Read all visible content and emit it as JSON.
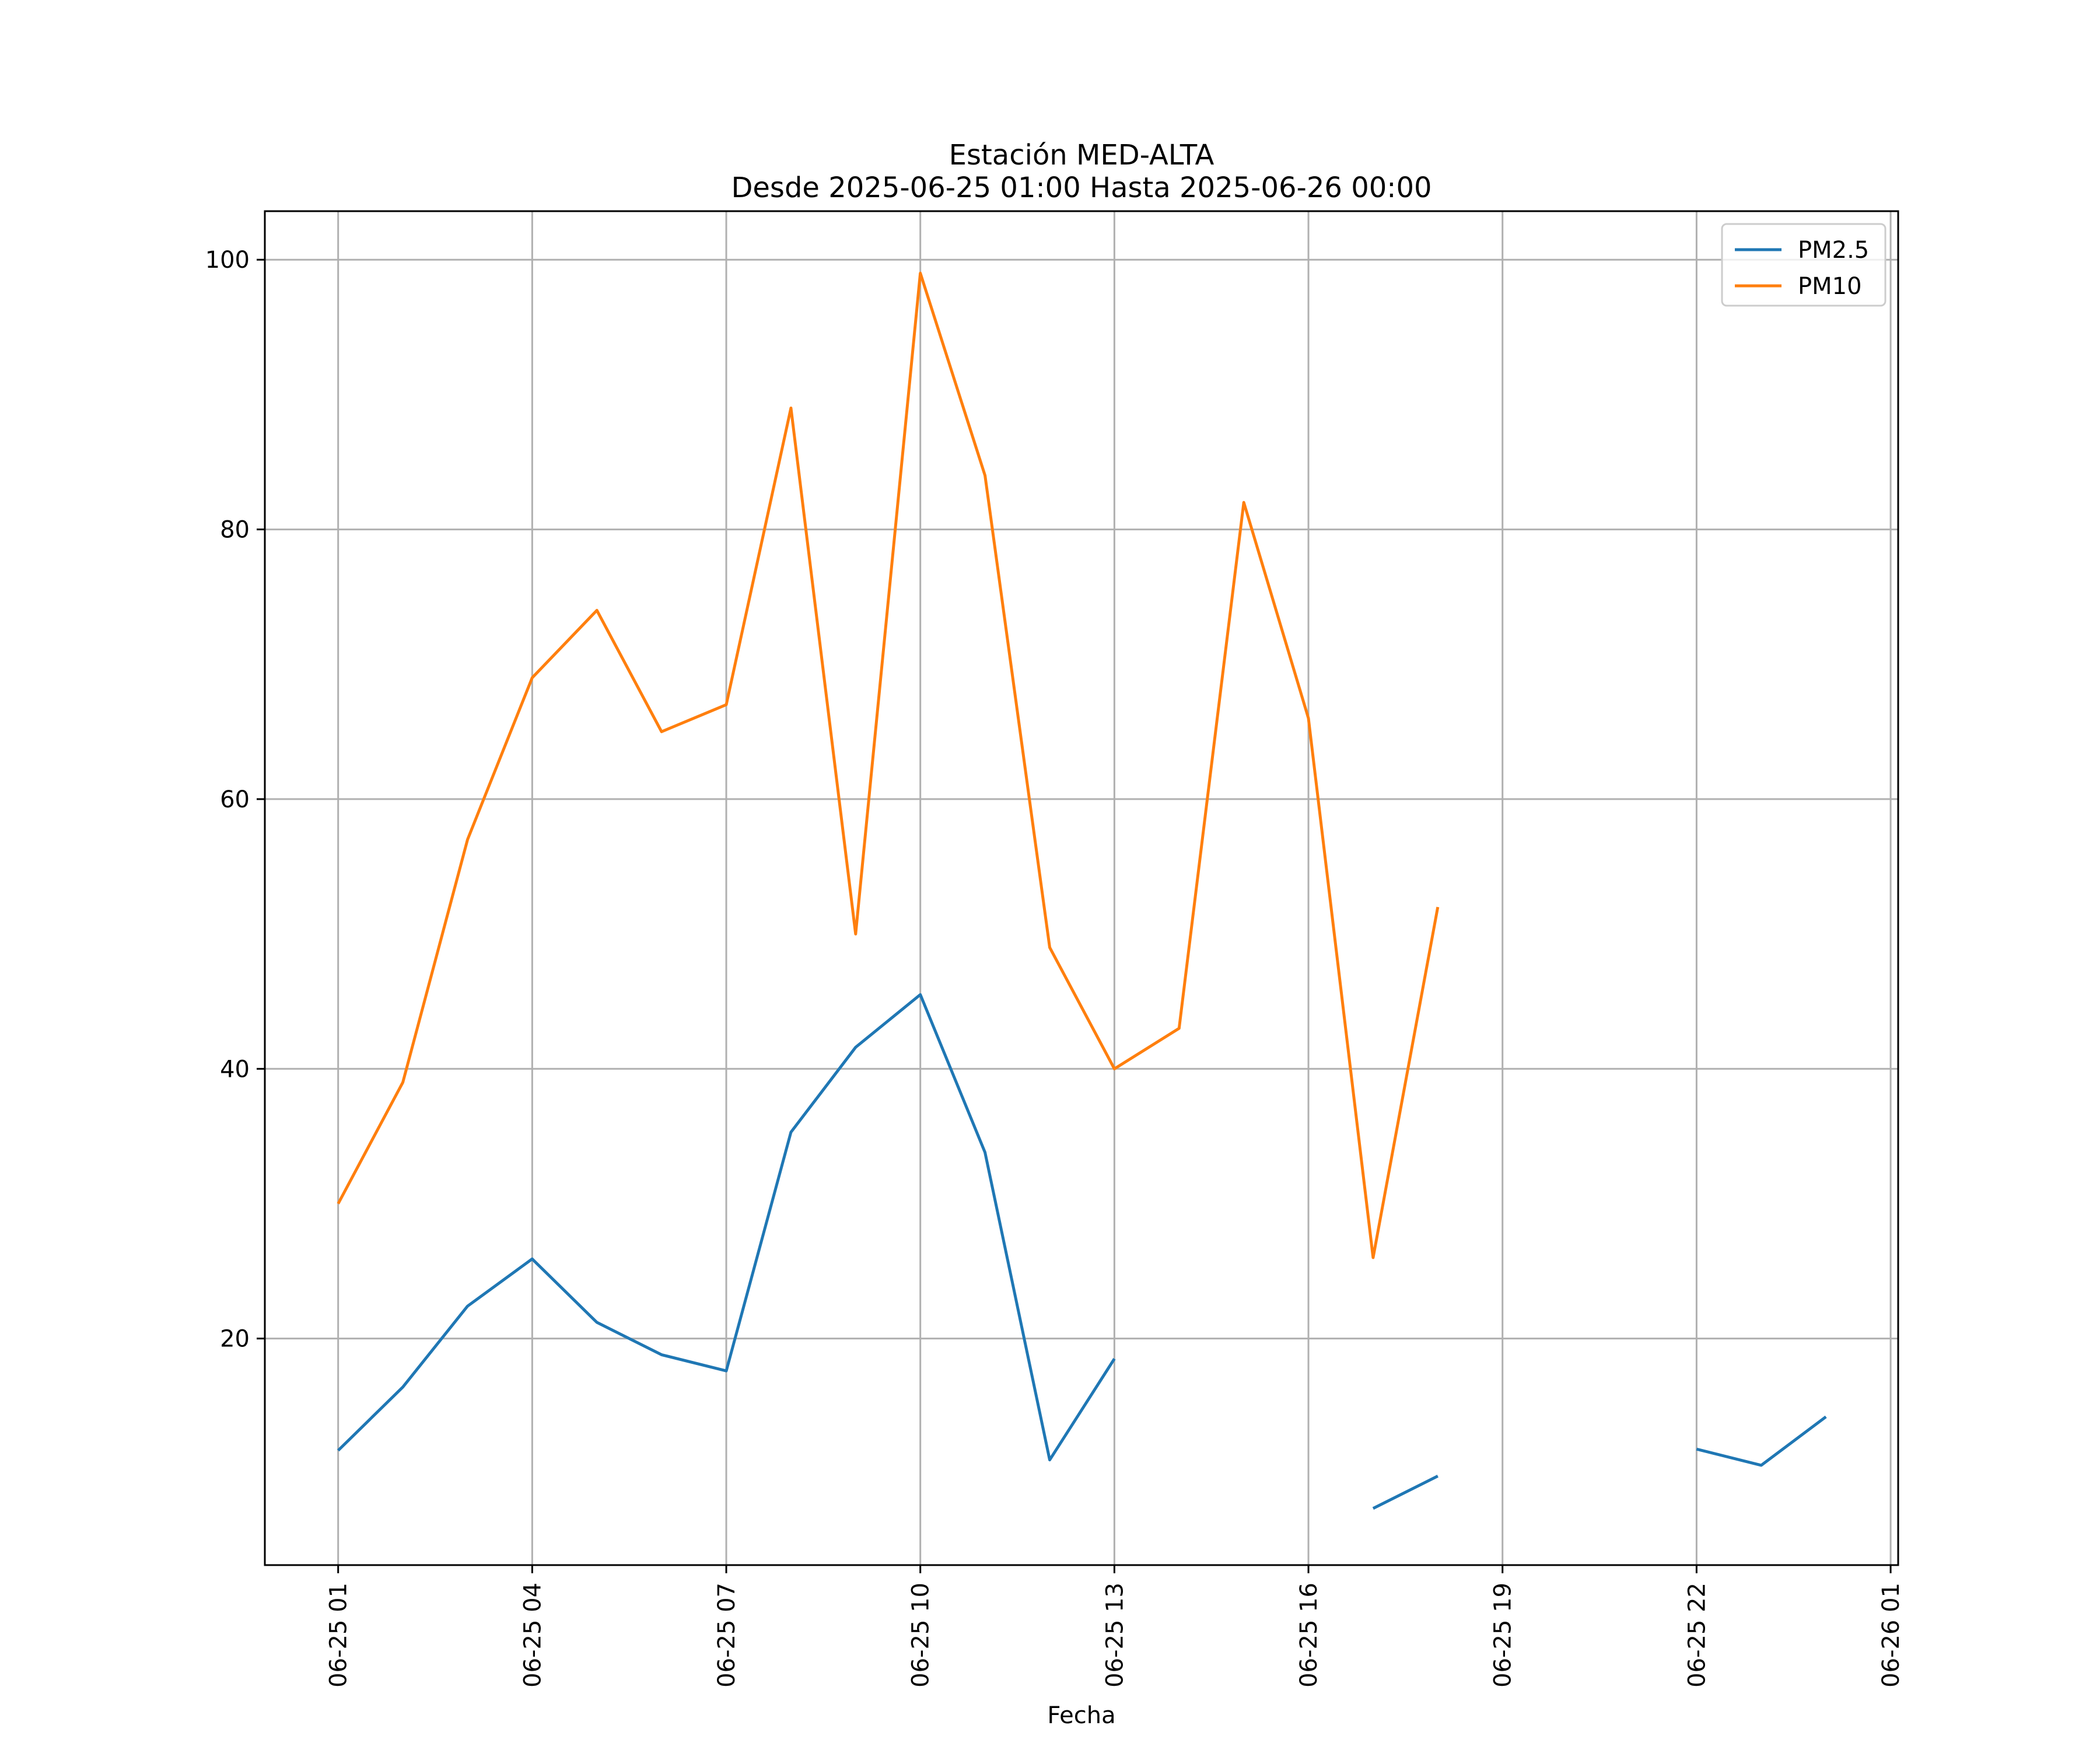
{
  "chart_data": {
    "type": "line",
    "title": "Estación MED-ALTA",
    "subtitle": "Desde 2025-06-25 01:00 Hasta 2025-06-26 00:00",
    "xlabel": "Fecha",
    "ylabel": "",
    "x": [
      "2025-06-25 01:00",
      "2025-06-25 02:00",
      "2025-06-25 03:00",
      "2025-06-25 04:00",
      "2025-06-25 05:00",
      "2025-06-25 06:00",
      "2025-06-25 07:00",
      "2025-06-25 08:00",
      "2025-06-25 09:00",
      "2025-06-25 10:00",
      "2025-06-25 11:00",
      "2025-06-25 12:00",
      "2025-06-25 13:00",
      "2025-06-25 14:00",
      "2025-06-25 15:00",
      "2025-06-25 16:00",
      "2025-06-25 17:00",
      "2025-06-25 18:00",
      "2025-06-25 19:00",
      "2025-06-25 20:00",
      "2025-06-25 21:00",
      "2025-06-25 22:00",
      "2025-06-25 23:00",
      "2025-06-26 00:00"
    ],
    "series": [
      {
        "name": "PM2.5",
        "color": "#1f77b4",
        "values": [
          11.7,
          16.4,
          22.4,
          25.9,
          21.2,
          18.8,
          17.6,
          35.3,
          41.6,
          45.5,
          33.8,
          11.0,
          18.5,
          null,
          null,
          null,
          7.4,
          9.8,
          null,
          null,
          null,
          11.8,
          10.6,
          14.2
        ]
      },
      {
        "name": "PM10",
        "color": "#ff7f0e",
        "values": [
          30,
          39,
          57,
          69,
          74,
          65,
          67,
          89,
          50,
          99,
          84,
          49,
          40,
          43,
          82,
          66,
          26,
          52,
          null,
          null,
          null,
          null,
          null,
          null
        ]
      }
    ],
    "xticks": [
      {
        "value": "2025-06-25 01:00",
        "label": "06-25 01"
      },
      {
        "value": "2025-06-25 04:00",
        "label": "06-25 04"
      },
      {
        "value": "2025-06-25 07:00",
        "label": "06-25 07"
      },
      {
        "value": "2025-06-25 10:00",
        "label": "06-25 10"
      },
      {
        "value": "2025-06-25 13:00",
        "label": "06-25 13"
      },
      {
        "value": "2025-06-25 16:00",
        "label": "06-25 16"
      },
      {
        "value": "2025-06-25 19:00",
        "label": "06-25 19"
      },
      {
        "value": "2025-06-25 22:00",
        "label": "06-25 22"
      },
      {
        "value": "2025-06-26 01:00",
        "label": "06-26 01"
      }
    ],
    "yticks": [
      20,
      40,
      60,
      80,
      100
    ],
    "xlim": [
      "2025-06-24 23:52",
      "2025-06-26 01:07"
    ],
    "ylim": [
      3.2,
      103.6
    ],
    "grid": true,
    "legend": "top-right"
  }
}
